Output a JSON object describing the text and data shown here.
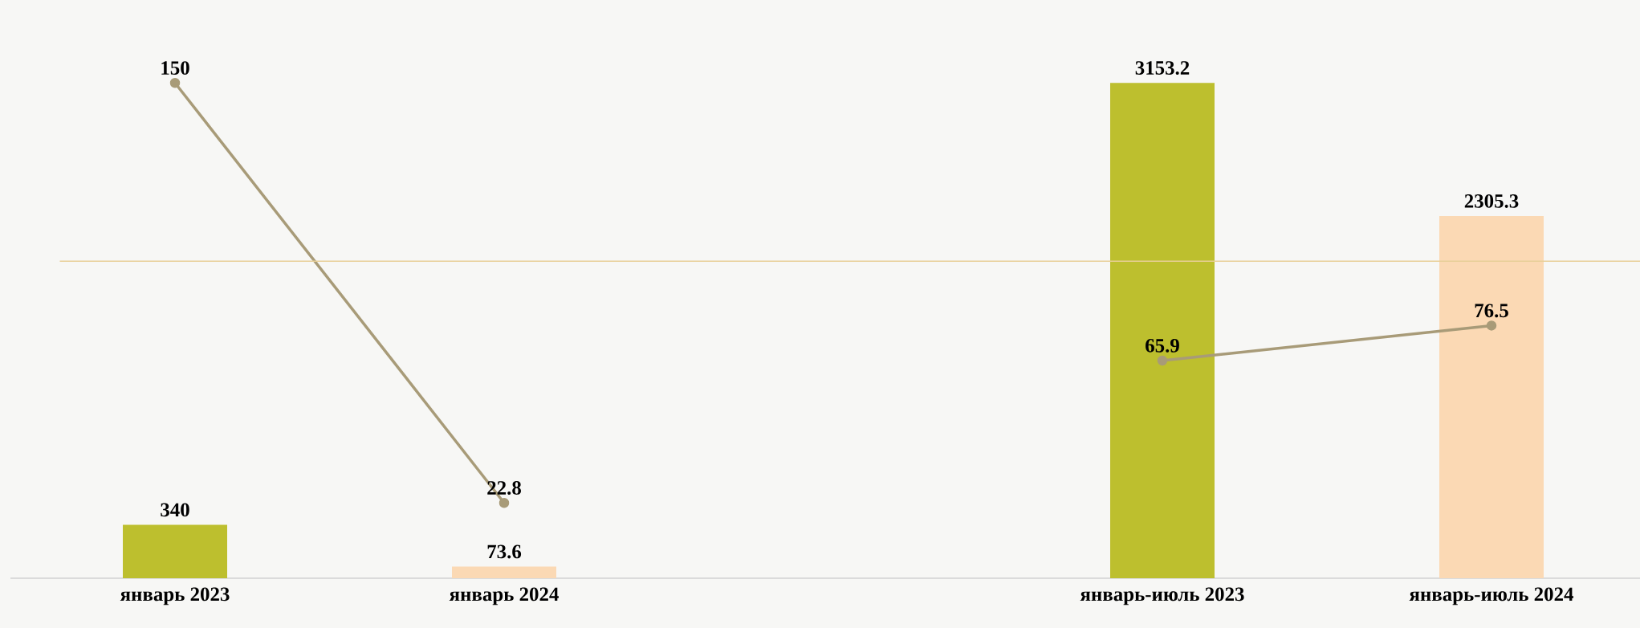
{
  "chart_data": {
    "type": "bar",
    "categories": [
      "январь 2023",
      "январь 2024",
      null,
      "январь-июль 2023",
      "январь-июль 2024"
    ],
    "series": [
      {
        "colors": [
          "#bdbf2e",
          "#fbd9b4",
          null,
          "#bdbf2e",
          "#fbd9b4"
        ],
        "values": [
          340,
          73.6,
          null,
          3153.2,
          2305.3
        ],
        "value_labels": [
          "340",
          "73.6",
          null,
          "3153.2",
          "2305.3"
        ]
      },
      {
        "type": "line",
        "axis": "y2",
        "color": "#a89b78",
        "marker": "circle",
        "values": [
          150,
          22.8,
          null,
          65.9,
          76.5
        ],
        "value_labels": [
          "150",
          "22.8",
          null,
          "65.9",
          "76.5"
        ]
      }
    ],
    "ref_lines": [
      {
        "axis": "y2",
        "value": 96,
        "color": "#e8cf97"
      }
    ],
    "data_labels": true,
    "tick_labels": "x"
  }
}
